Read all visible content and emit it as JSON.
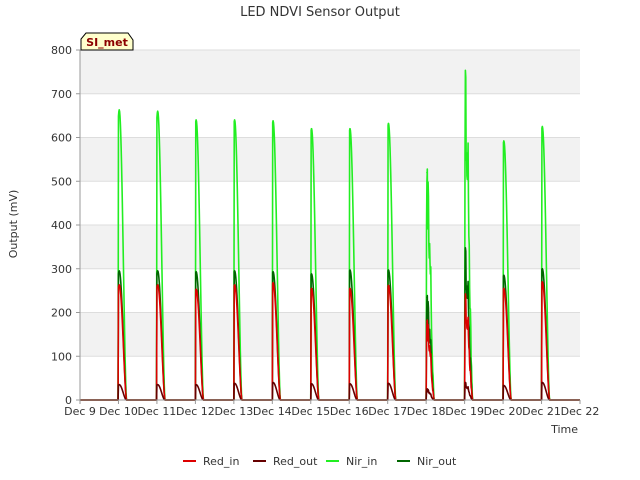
{
  "chart_data": {
    "type": "line",
    "title": "LED NDVI Sensor Output",
    "xlabel": "Time",
    "ylabel": "Output (mV)",
    "site_badge": "SI_met",
    "ylim": [
      0,
      800
    ],
    "yticks": [
      0,
      100,
      200,
      300,
      400,
      500,
      600,
      700,
      800
    ],
    "xlim": [
      "2024-12-09",
      "2024-12-22"
    ],
    "xtick_labels": [
      "Dec 9",
      "Dec 10",
      "Dec 11",
      "Dec 12",
      "Dec 13",
      "Dec 14",
      "Dec 15",
      "Dec 16",
      "Dec 17",
      "Dec 18",
      "Dec 19",
      "Dec 20",
      "Dec 21",
      "Dec 22"
    ],
    "grid": "horizontal bands",
    "legend_position": "bottom",
    "colors": {
      "Red_in": "#dd0000",
      "Red_out": "#660000",
      "Nir_in": "#22ee22",
      "Nir_out": "#006600"
    },
    "series": [
      {
        "name": "Red_in",
        "x": [
          "Dec 10",
          "Dec 11",
          "Dec 12",
          "Dec 13",
          "Dec 14",
          "Dec 15",
          "Dec 16",
          "Dec 17",
          "Dec 18",
          "Dec 19",
          "Dec 20",
          "Dec 21"
        ],
        "values": [
          263,
          263,
          253,
          263,
          268,
          255,
          255,
          262,
          180,
          230,
          255,
          270
        ]
      },
      {
        "name": "Red_out",
        "x": [
          "Dec 10",
          "Dec 11",
          "Dec 12",
          "Dec 13",
          "Dec 14",
          "Dec 15",
          "Dec 16",
          "Dec 17",
          "Dec 18",
          "Dec 19",
          "Dec 20",
          "Dec 21"
        ],
        "values": [
          35,
          35,
          35,
          38,
          40,
          37,
          37,
          38,
          25,
          38,
          33,
          40
        ]
      },
      {
        "name": "Nir_in",
        "x": [
          "Dec 10",
          "Dec 11",
          "Dec 12",
          "Dec 13",
          "Dec 14",
          "Dec 15",
          "Dec 16",
          "Dec 17",
          "Dec 18",
          "Dec 19",
          "Dec 20",
          "Dec 21"
        ],
        "values": [
          663,
          660,
          640,
          640,
          638,
          620,
          620,
          632,
          520,
          715,
          592,
          625
        ]
      },
      {
        "name": "Nir_out",
        "x": [
          "Dec 10",
          "Dec 11",
          "Dec 12",
          "Dec 13",
          "Dec 14",
          "Dec 15",
          "Dec 16",
          "Dec 17",
          "Dec 18",
          "Dec 19",
          "Dec 20",
          "Dec 21"
        ],
        "values": [
          295,
          295,
          293,
          295,
          293,
          288,
          297,
          297,
          235,
          330,
          285,
          300
        ]
      }
    ]
  }
}
